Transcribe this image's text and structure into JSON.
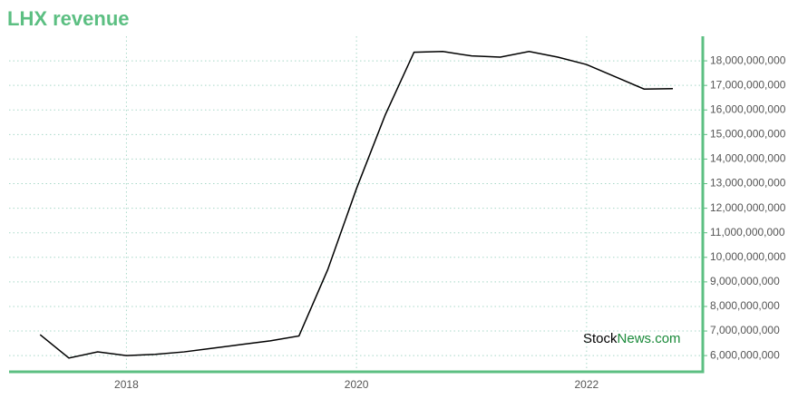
{
  "chart_data": {
    "type": "line",
    "title": "LHX revenue",
    "x": [
      2017.25,
      2017.5,
      2017.75,
      2018,
      2018.25,
      2018.5,
      2018.75,
      2019,
      2019.25,
      2019.5,
      2019.75,
      2020,
      2020.25,
      2020.5,
      2020.75,
      2021,
      2021.25,
      2021.5,
      2021.75,
      2022,
      2022.25,
      2022.5,
      2022.75
    ],
    "values": [
      6850000000,
      5900000000,
      6150000000,
      6000000000,
      6050000000,
      6150000000,
      6300000000,
      6450000000,
      6600000000,
      6800000000,
      9500000000,
      12800000000,
      15800000000,
      18350000000,
      18380000000,
      18200000000,
      18150000000,
      18380000000,
      18150000000,
      17850000000,
      17350000000,
      16850000000,
      16870000000
    ],
    "color": "#000000",
    "axis_color": "#5cbf82",
    "xlim": [
      2016.98,
      2023.01
    ],
    "xticks": [
      2018,
      2020,
      2022
    ],
    "ylim": [
      5340000000,
      19000000000
    ],
    "yticks": [
      {
        "value": 6000000000,
        "label": "6,000,000,000"
      },
      {
        "value": 7000000000,
        "label": "7,000,000,000"
      },
      {
        "value": 8000000000,
        "label": "8,000,000,000"
      },
      {
        "value": 9000000000,
        "label": "9,000,000,000"
      },
      {
        "value": 10000000000,
        "label": "10,000,000,000"
      },
      {
        "value": 11000000000,
        "label": "11,000,000,000"
      },
      {
        "value": 12000000000,
        "label": "12,000,000,000"
      },
      {
        "value": 13000000000,
        "label": "13,000,000,000"
      },
      {
        "value": 14000000000,
        "label": "14,000,000,000"
      },
      {
        "value": 15000000000,
        "label": "15,000,000,000"
      },
      {
        "value": 16000000000,
        "label": "16,000,000,000"
      },
      {
        "value": 17000000000,
        "label": "17,000,000,000"
      },
      {
        "value": 18000000000,
        "label": "18,000,000,000"
      }
    ],
    "grid": true,
    "watermark": {
      "part1": "Stock",
      "part2": "News.com"
    }
  }
}
